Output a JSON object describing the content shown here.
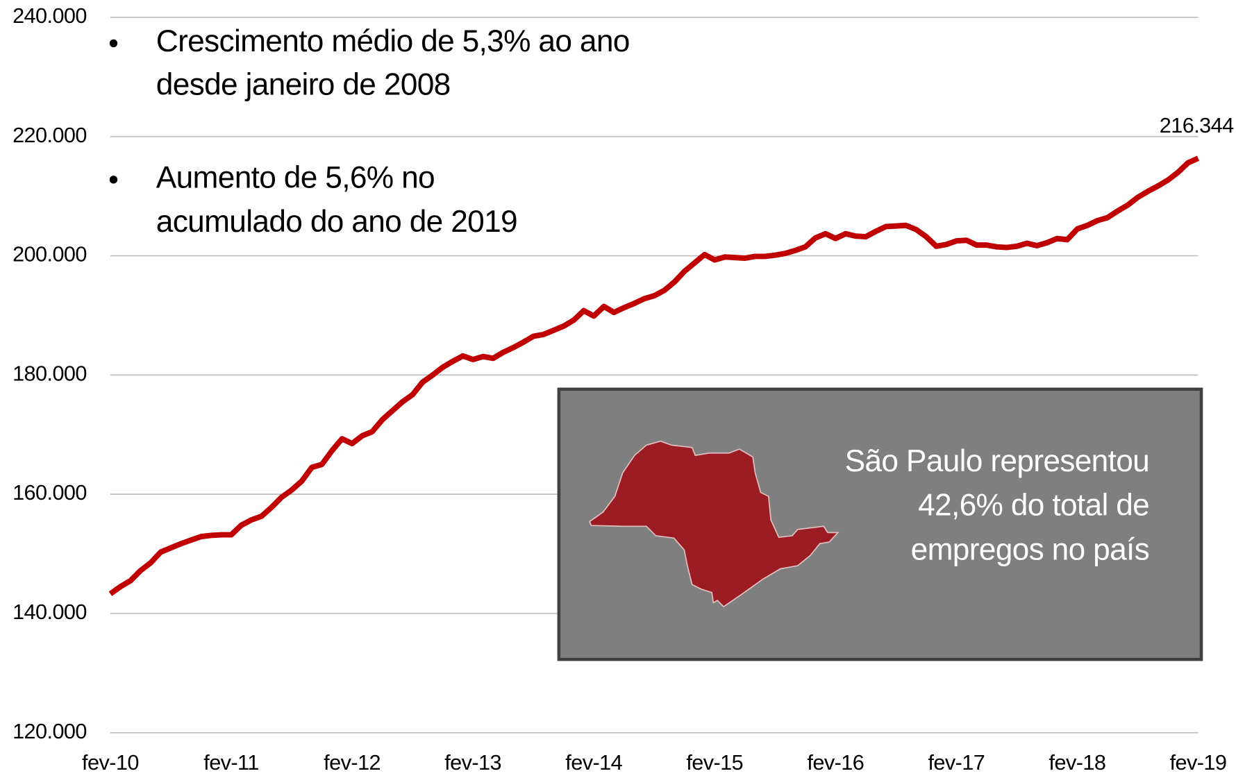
{
  "chart_data": {
    "type": "line",
    "categories": [
      "fev-10",
      null,
      null,
      null,
      null,
      null,
      null,
      null,
      null,
      null,
      null,
      null,
      "fev-11",
      null,
      null,
      null,
      null,
      null,
      null,
      null,
      null,
      null,
      null,
      null,
      "fev-12",
      null,
      null,
      null,
      null,
      null,
      null,
      null,
      null,
      null,
      null,
      null,
      "fev-13",
      null,
      null,
      null,
      null,
      null,
      null,
      null,
      null,
      null,
      null,
      null,
      "fev-14",
      null,
      null,
      null,
      null,
      null,
      null,
      null,
      null,
      null,
      null,
      null,
      "fev-15",
      null,
      null,
      null,
      null,
      null,
      null,
      null,
      null,
      null,
      null,
      null,
      "fev-16",
      null,
      null,
      null,
      null,
      null,
      null,
      null,
      null,
      null,
      null,
      null,
      "fev-17",
      null,
      null,
      null,
      null,
      null,
      null,
      null,
      null,
      null,
      null,
      null,
      "fev-18",
      null,
      null,
      null,
      null,
      null,
      null,
      null,
      null,
      null,
      null,
      null,
      "fev-19"
    ],
    "series": [
      {
        "color": "#c00000",
        "values": [
          143300,
          144500,
          145500,
          147200,
          148500,
          150300,
          151000,
          151700,
          152300,
          152900,
          153100,
          153200,
          153200,
          154800,
          155700,
          156300,
          157800,
          159500,
          160700,
          162200,
          164500,
          165000,
          167300,
          169300,
          168500,
          169800,
          170500,
          172500,
          174000,
          175500,
          176700,
          178800,
          180000,
          181300,
          182300,
          183200,
          182600,
          183100,
          182800,
          183800,
          184600,
          185500,
          186500,
          186800,
          187500,
          188200,
          189200,
          190800,
          189900,
          191500,
          190500,
          191300,
          192000,
          192800,
          193300,
          194200,
          195600,
          197400,
          198800,
          200200,
          199300,
          199800,
          199700,
          199600,
          199900,
          199900,
          200100,
          200400,
          200900,
          201500,
          203000,
          203700,
          202900,
          203700,
          203300,
          203200,
          204100,
          204900,
          205000,
          205100,
          204400,
          203200,
          201600,
          201900,
          202500,
          202600,
          201800,
          201800,
          201500,
          201400,
          201600,
          202100,
          201700,
          202200,
          202900,
          202700,
          204500,
          205100,
          205900,
          206400,
          207500,
          208500,
          209800,
          210800,
          211700,
          212700,
          214000,
          215600,
          216344
        ],
        "value_labels": [
          null,
          null,
          null,
          null,
          null,
          null,
          null,
          null,
          null,
          null,
          null,
          null,
          null,
          null,
          null,
          null,
          null,
          null,
          null,
          null,
          null,
          null,
          null,
          null,
          null,
          null,
          null,
          null,
          null,
          null,
          null,
          null,
          null,
          null,
          null,
          null,
          null,
          null,
          null,
          null,
          null,
          null,
          null,
          null,
          null,
          null,
          null,
          null,
          null,
          null,
          null,
          null,
          null,
          null,
          null,
          null,
          null,
          null,
          null,
          null,
          null,
          null,
          null,
          null,
          null,
          null,
          null,
          null,
          null,
          null,
          null,
          null,
          null,
          null,
          null,
          null,
          null,
          null,
          null,
          null,
          null,
          null,
          null,
          null,
          null,
          null,
          null,
          null,
          null,
          null,
          null,
          null,
          null,
          null,
          null,
          null,
          null,
          null,
          null,
          null,
          null,
          null,
          null,
          null,
          null,
          null,
          null,
          null,
          "216.344"
        ]
      }
    ],
    "ylim": [
      120000,
      240000
    ],
    "yticks": [
      {
        "value": 120000,
        "label": "120.000"
      },
      {
        "value": 140000,
        "label": "140.000"
      },
      {
        "value": 160000,
        "label": "160.000"
      },
      {
        "value": 180000,
        "label": "180.000"
      },
      {
        "value": 200000,
        "label": "200.000"
      },
      {
        "value": 220000,
        "label": "220.000"
      },
      {
        "value": 240000,
        "label": "240.000"
      }
    ],
    "grid": true,
    "annotations": [
      [
        "Crescimento médio de 5,3% ao ano",
        "desde janeiro de 2008"
      ],
      [
        "Aumento de 5,6% no",
        "acumulado do ano de 2019"
      ]
    ],
    "callout": [
      "São Paulo representou",
      "42,6% do total de",
      "empregos no país"
    ]
  }
}
